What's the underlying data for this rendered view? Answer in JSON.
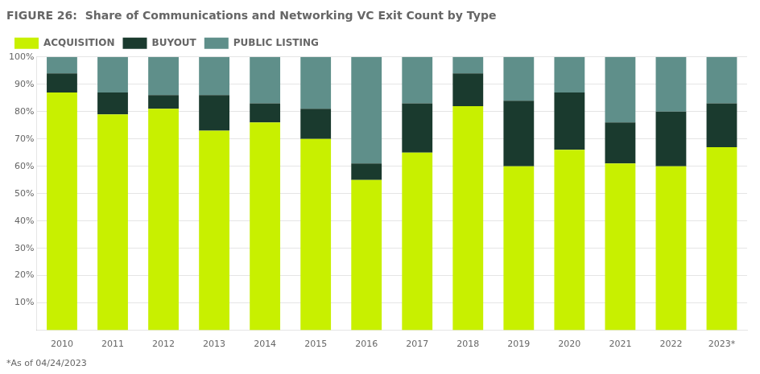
{
  "chart_data": {
    "type": "bar",
    "stacked": true,
    "title": "FIGURE 26:  Share of Communications and Networking VC Exit Count by Type",
    "footer": "*As of 04/24/2023",
    "categories": [
      "2010",
      "2011",
      "2012",
      "2013",
      "2014",
      "2015",
      "2016",
      "2017",
      "2018",
      "2019",
      "2020",
      "2021",
      "2022",
      "2023*"
    ],
    "series": [
      {
        "name": "ACQUISITION",
        "color": "#c8f000",
        "values": [
          0.87,
          0.79,
          0.81,
          0.73,
          0.76,
          0.7,
          0.55,
          0.65,
          0.82,
          0.6,
          0.66,
          0.61,
          0.6,
          0.67
        ]
      },
      {
        "name": "BUYOUT",
        "color": "#1a3a2e",
        "values": [
          0.07,
          0.08,
          0.05,
          0.13,
          0.07,
          0.11,
          0.06,
          0.18,
          0.12,
          0.24,
          0.21,
          0.15,
          0.2,
          0.16
        ]
      },
      {
        "name": "PUBLIC LISTING",
        "color": "#5f8f8a",
        "values": [
          0.06,
          0.13,
          0.14,
          0.14,
          0.17,
          0.19,
          0.39,
          0.17,
          0.06,
          0.16,
          0.13,
          0.24,
          0.2,
          0.17
        ]
      }
    ],
    "ylim": [
      0,
      1.0
    ],
    "yticks": [
      {
        "value": 0.1,
        "label": "10%"
      },
      {
        "value": 0.2,
        "label": "20%"
      },
      {
        "value": 0.3,
        "label": "30%"
      },
      {
        "value": 0.4,
        "label": "40%"
      },
      {
        "value": 0.5,
        "label": "50%"
      },
      {
        "value": 0.6,
        "label": "60%"
      },
      {
        "value": 0.7,
        "label": "70%"
      },
      {
        "value": 0.8,
        "label": "80%"
      },
      {
        "value": 0.9,
        "label": "90%"
      },
      {
        "value": 1.0,
        "label": "100%"
      }
    ],
    "grid": true,
    "legend": "top"
  }
}
